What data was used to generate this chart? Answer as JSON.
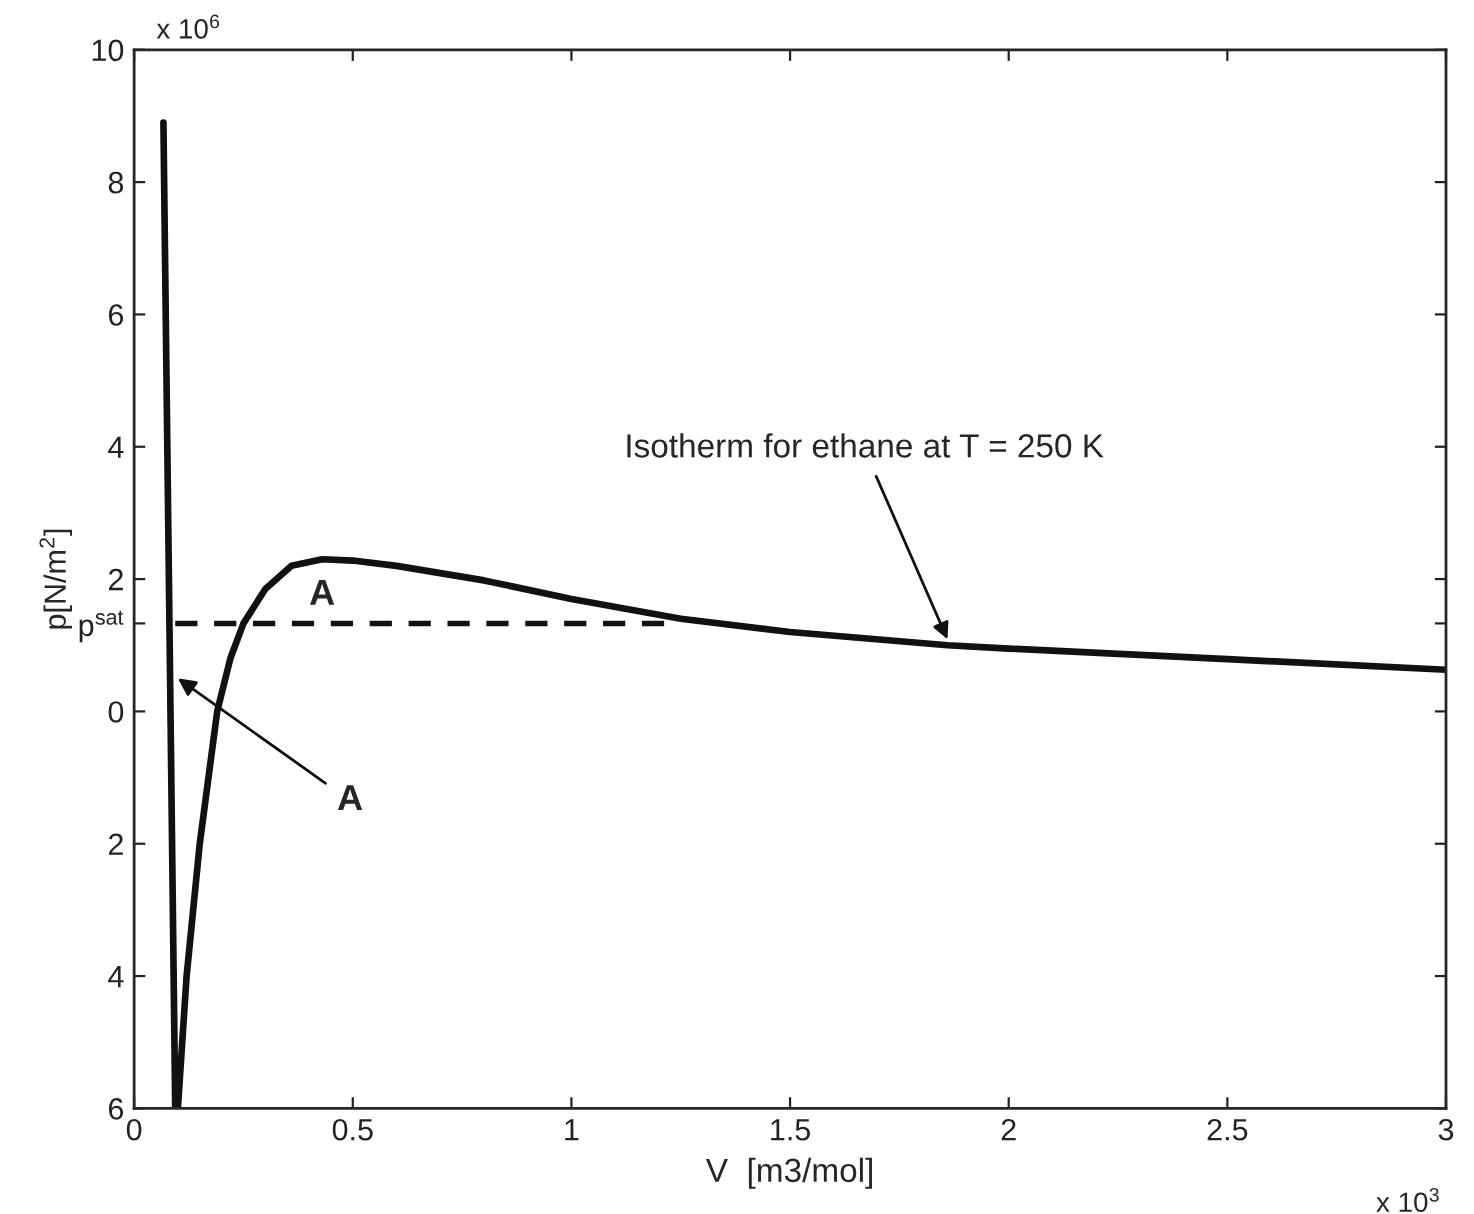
{
  "chart_data": {
    "type": "line",
    "xlabel": "V  [m3/mol]",
    "ylabel": "p[N/m$^{2}$]",
    "xlim": [
      0,
      3
    ],
    "ylim": [
      -6,
      10
    ],
    "xticks": [
      0,
      0.5,
      1,
      1.5,
      2,
      2.5,
      3
    ],
    "yticks": [
      {
        "value": -6,
        "label": "6"
      },
      {
        "value": -4,
        "label": "4"
      },
      {
        "value": -2,
        "label": "2"
      },
      0,
      {
        "value": 1.33,
        "label": "p$^{sat}$"
      },
      2,
      4,
      6,
      8,
      10
    ],
    "grid": false,
    "legend": false,
    "series": [
      {
        "color": "#111111",
        "line_style": "solid",
        "x": [
          0.067,
          0.094,
          0.1,
          0.12,
          0.15,
          0.19,
          0.22,
          0.25,
          0.3,
          0.36,
          0.43,
          0.5,
          0.6,
          0.8,
          1.0,
          1.25,
          1.5,
          1.86,
          2.0,
          2.5,
          3.0
        ],
        "values": [
          8.9,
          -6,
          -6,
          -4,
          -2,
          0,
          0.8,
          1.33,
          1.85,
          2.2,
          2.3,
          2.28,
          2.2,
          1.98,
          1.7,
          1.4,
          1.2,
          1.0,
          0.95,
          0.79,
          0.63
        ]
      },
      {
        "color": "#111111",
        "line_style": "dashed",
        "x": [
          0.094,
          1.25
        ],
        "values": [
          1.33,
          1.33
        ]
      }
    ],
    "annotations": [
      {
        "text": "A",
        "x": 0.43,
        "y": 1.33
      },
      {
        "text": "A",
        "x": 0.1,
        "y": 0.5
      },
      {
        "text": "Isotherm for ethane at T = 250 K",
        "x": 1.86,
        "y": 1.09
      },
      "x 10$^{6}$",
      "x 10$^{3}$"
    ]
  }
}
